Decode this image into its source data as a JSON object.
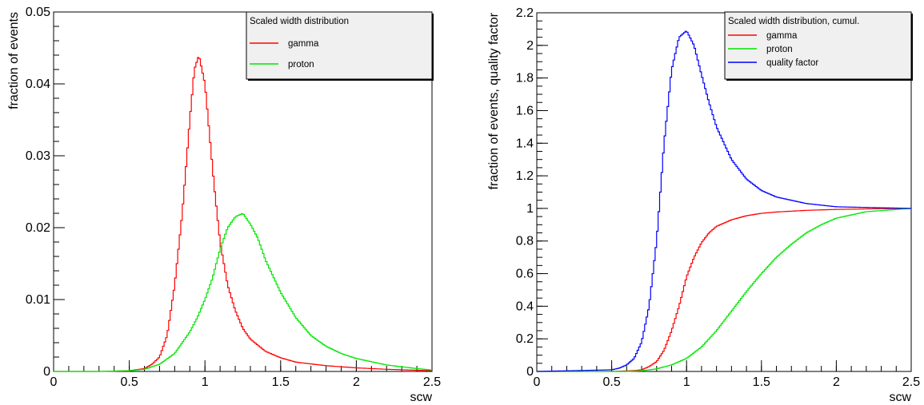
{
  "chart_data": [
    {
      "type": "line",
      "title": "",
      "xlabel": "scw",
      "ylabel": "fraction of events",
      "xlim": [
        0,
        2.5
      ],
      "ylim": [
        0,
        0.05
      ],
      "x_ticks": [
        "0",
        "0.5",
        "1",
        "1.5",
        "2",
        "2.5"
      ],
      "y_ticks": [
        "0",
        "0.01",
        "0.02",
        "0.03",
        "0.04",
        "0.05"
      ],
      "legend": {
        "title": "Scaled width distribution",
        "placement": "top-right"
      },
      "series": [
        {
          "name": "gamma",
          "color": "#ff0000",
          "x": [
            0,
            0.3,
            0.5,
            0.6,
            0.65,
            0.7,
            0.75,
            0.8,
            0.85,
            0.9,
            0.93,
            0.96,
            1.0,
            1.03,
            1.06,
            1.1,
            1.15,
            1.2,
            1.25,
            1.3,
            1.4,
            1.5,
            1.6,
            1.8,
            2.0,
            2.2,
            2.5
          ],
          "y": [
            0,
            0,
            0.0001,
            0.0004,
            0.001,
            0.002,
            0.005,
            0.012,
            0.022,
            0.035,
            0.042,
            0.044,
            0.04,
            0.033,
            0.026,
            0.018,
            0.012,
            0.0085,
            0.006,
            0.0045,
            0.0028,
            0.0019,
            0.0013,
            0.0008,
            0.0005,
            0.0003,
            0.0001
          ]
        },
        {
          "name": "proton",
          "color": "#00e600",
          "x": [
            0,
            0.3,
            0.5,
            0.6,
            0.7,
            0.8,
            0.85,
            0.9,
            0.95,
            1.0,
            1.05,
            1.1,
            1.15,
            1.2,
            1.25,
            1.3,
            1.35,
            1.4,
            1.5,
            1.6,
            1.7,
            1.8,
            1.9,
            2.0,
            2.2,
            2.4,
            2.5
          ],
          "y": [
            0,
            0,
            0.0001,
            0.0003,
            0.001,
            0.0025,
            0.004,
            0.0055,
            0.0075,
            0.01,
            0.013,
            0.017,
            0.02,
            0.0215,
            0.022,
            0.0205,
            0.0185,
            0.0155,
            0.011,
            0.0075,
            0.005,
            0.0035,
            0.0025,
            0.0018,
            0.0009,
            0.0004,
            0.0002
          ]
        }
      ]
    },
    {
      "type": "line",
      "title": "",
      "xlabel": "scw",
      "ylabel": "fraction of events, quality factor",
      "xlim": [
        0,
        2.5
      ],
      "ylim": [
        0,
        2.2
      ],
      "x_ticks": [
        "0",
        "0.5",
        "1",
        "1.5",
        "2",
        "2.5"
      ],
      "y_ticks": [
        "0",
        "0.2",
        "0.4",
        "0.6",
        "0.8",
        "1",
        "1.2",
        "1.4",
        "1.6",
        "1.8",
        "2",
        "2.2"
      ],
      "legend": {
        "title": "Scaled width distribution, cumul.",
        "placement": "top-right"
      },
      "series": [
        {
          "name": "gamma",
          "color": "#ff0000",
          "x": [
            0,
            0.5,
            0.65,
            0.7,
            0.75,
            0.8,
            0.85,
            0.9,
            0.95,
            1.0,
            1.05,
            1.1,
            1.15,
            1.2,
            1.3,
            1.4,
            1.5,
            1.6,
            1.8,
            2.0,
            2.2,
            2.5
          ],
          "y": [
            0,
            0,
            0.005,
            0.01,
            0.03,
            0.06,
            0.13,
            0.25,
            0.4,
            0.58,
            0.7,
            0.79,
            0.85,
            0.89,
            0.93,
            0.955,
            0.97,
            0.978,
            0.988,
            0.994,
            0.997,
            1.0
          ]
        },
        {
          "name": "proton",
          "color": "#00e600",
          "x": [
            0,
            0.6,
            0.7,
            0.8,
            0.9,
            1.0,
            1.1,
            1.2,
            1.3,
            1.4,
            1.5,
            1.6,
            1.7,
            1.8,
            1.9,
            2.0,
            2.2,
            2.5
          ],
          "y": [
            0,
            0,
            0.004,
            0.016,
            0.04,
            0.08,
            0.15,
            0.25,
            0.37,
            0.49,
            0.6,
            0.7,
            0.78,
            0.85,
            0.9,
            0.94,
            0.98,
            1.0
          ]
        },
        {
          "name": "quality factor",
          "color": "#0000ff",
          "x": [
            0,
            0.5,
            0.55,
            0.6,
            0.65,
            0.7,
            0.75,
            0.8,
            0.85,
            0.9,
            0.95,
            1.0,
            1.05,
            1.1,
            1.15,
            1.2,
            1.3,
            1.4,
            1.5,
            1.6,
            1.8,
            2.0,
            2.5
          ],
          "y": [
            0,
            0.01,
            0.02,
            0.04,
            0.08,
            0.18,
            0.4,
            0.8,
            1.4,
            1.85,
            2.05,
            2.09,
            2.0,
            1.82,
            1.65,
            1.5,
            1.3,
            1.18,
            1.11,
            1.07,
            1.03,
            1.01,
            1.0
          ]
        }
      ]
    }
  ]
}
